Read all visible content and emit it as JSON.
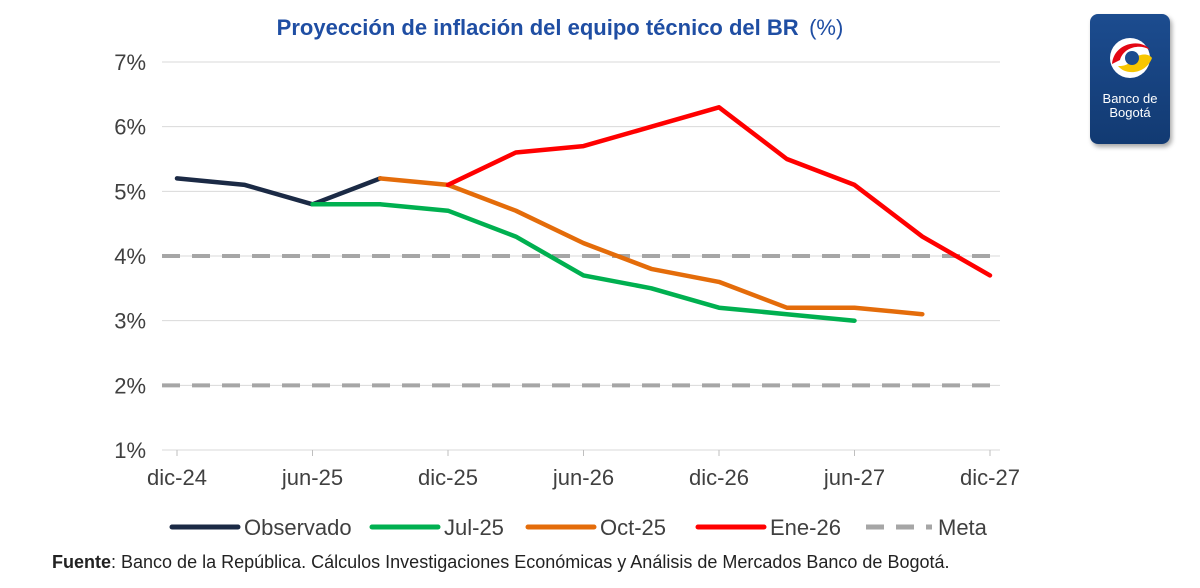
{
  "title": {
    "main": "Proyección de inflación del equipo técnico del BR",
    "unit": "(%)"
  },
  "logo": {
    "line1": "Banco de",
    "line2": "Bogotá",
    "icon": "banco-de-bogota-emblem"
  },
  "source": {
    "label": "Fuente",
    "text": ": Banco de la República. Cálculos Investigaciones Económicas y Análisis de Mercados Banco de Bogotá."
  },
  "chart_data": {
    "type": "line",
    "x_axis_type": "date",
    "title": "Proyección de inflación del equipo técnico del BR (%)",
    "xlabel": "",
    "ylabel": "",
    "xlim": [
      "2024-12",
      "2027-12"
    ],
    "ylim": [
      1,
      7
    ],
    "y_ticks": [
      "7%",
      "6%",
      "5%",
      "4%",
      "3%",
      "2%",
      "1%"
    ],
    "y_tick_values": [
      7,
      6,
      5,
      4,
      3,
      2,
      1
    ],
    "x_ticks": [
      "dic-24",
      "jun-25",
      "dic-25",
      "jun-26",
      "dic-26",
      "jun-27",
      "dic-27"
    ],
    "x_tick_values": [
      "2024-12",
      "2025-06",
      "2025-12",
      "2026-06",
      "2026-12",
      "2027-06",
      "2027-12"
    ],
    "grid": "horizontal",
    "legend_position": "bottom",
    "series": [
      {
        "name": "Observado",
        "color": "#1b2a45",
        "dash": false,
        "points": [
          [
            "2024-12",
            5.2
          ],
          [
            "2025-03",
            5.1
          ],
          [
            "2025-06",
            4.8
          ],
          [
            "2025-09",
            5.2
          ]
        ]
      },
      {
        "name": "Jul-25",
        "color": "#00b050",
        "dash": false,
        "points": [
          [
            "2025-06",
            4.8
          ],
          [
            "2025-09",
            4.8
          ],
          [
            "2025-12",
            4.7
          ],
          [
            "2026-03",
            4.3
          ],
          [
            "2026-06",
            3.7
          ],
          [
            "2026-09",
            3.5
          ],
          [
            "2026-12",
            3.2
          ],
          [
            "2027-03",
            3.1
          ],
          [
            "2027-06",
            3.0
          ]
        ]
      },
      {
        "name": "Oct-25",
        "color": "#e46c0a",
        "dash": false,
        "points": [
          [
            "2025-09",
            5.2
          ],
          [
            "2025-12",
            5.1
          ],
          [
            "2026-03",
            4.7
          ],
          [
            "2026-06",
            4.2
          ],
          [
            "2026-09",
            3.8
          ],
          [
            "2026-12",
            3.6
          ],
          [
            "2027-03",
            3.2
          ],
          [
            "2027-06",
            3.2
          ],
          [
            "2027-09",
            3.1
          ]
        ]
      },
      {
        "name": "Ene-26",
        "color": "#ff0000",
        "dash": false,
        "points": [
          [
            "2025-12",
            5.1
          ],
          [
            "2026-03",
            5.6
          ],
          [
            "2026-06",
            5.7
          ],
          [
            "2026-09",
            6.0
          ],
          [
            "2026-12",
            6.3
          ],
          [
            "2027-03",
            5.5
          ],
          [
            "2027-06",
            5.1
          ],
          [
            "2027-09",
            4.3
          ],
          [
            "2027-12",
            3.7
          ]
        ]
      },
      {
        "name": "Meta",
        "color": "#a6a6a6",
        "dash": true,
        "bands": [
          2,
          4
        ]
      }
    ]
  }
}
